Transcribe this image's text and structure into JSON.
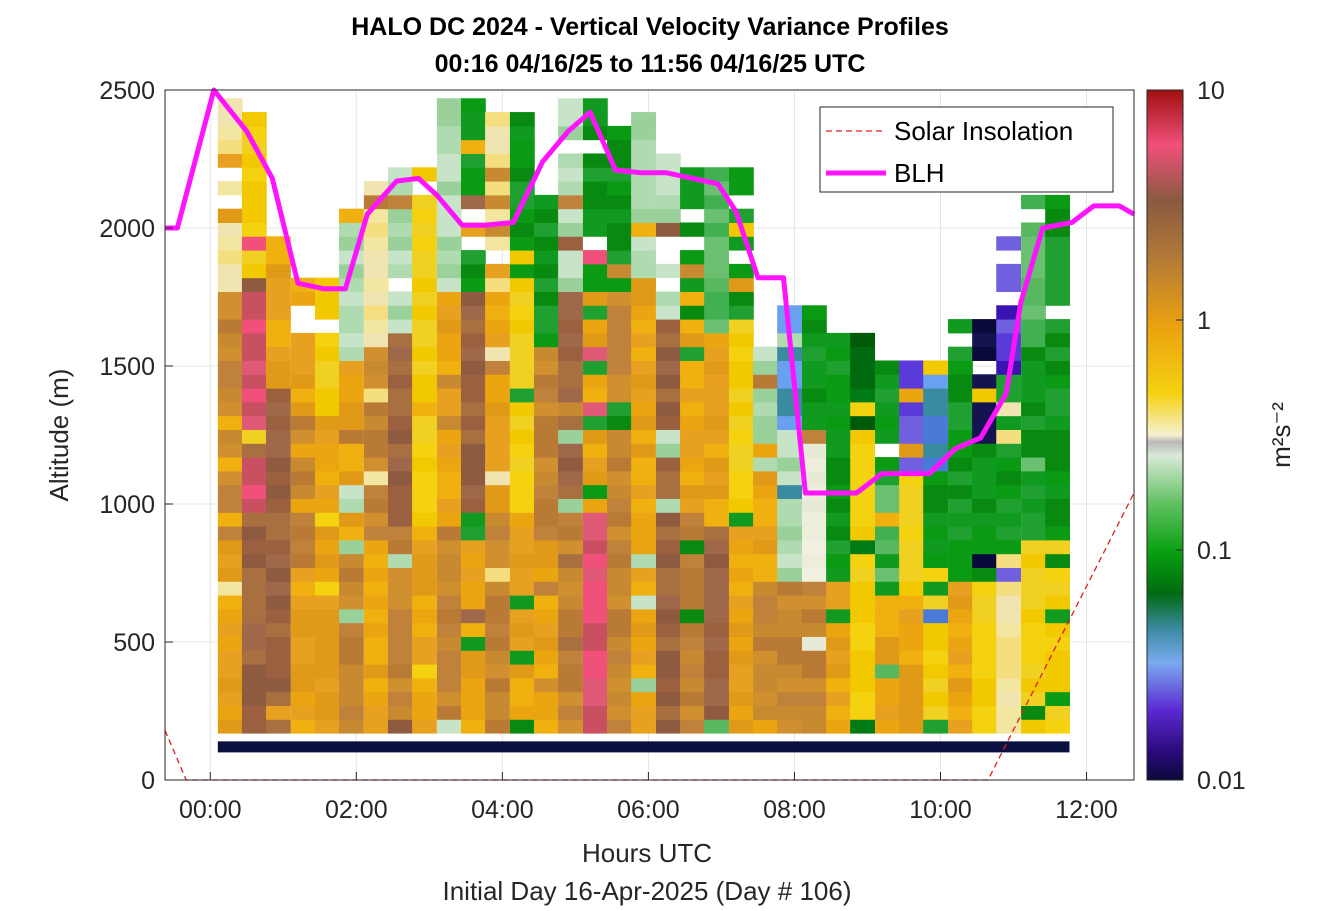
{
  "chart_data": {
    "type": "heatmap",
    "title": "HALO DC 2024 - Vertical Velocity Variance Profiles",
    "subtitle": "00:16 04/16/25 to 11:56 04/16/25  UTC",
    "xlabel": "Hours UTC",
    "xlabel2": "Initial Day 16-Apr-2025 (Day # 106)",
    "ylabel": "Altitude (m)",
    "xlim_hours": [
      -0.62,
      12.65
    ],
    "ylim": [
      0,
      2500
    ],
    "x_ticks": [
      {
        "value": 0,
        "label": "00:00"
      },
      {
        "value": 2,
        "label": "02:00"
      },
      {
        "value": 4,
        "label": "04:00"
      },
      {
        "value": 6,
        "label": "06:00"
      },
      {
        "value": 8,
        "label": "08:00"
      },
      {
        "value": 10,
        "label": "10:00"
      },
      {
        "value": 12,
        "label": "12:00"
      }
    ],
    "y_ticks": [
      {
        "value": 0,
        "label": "0"
      },
      {
        "value": 500,
        "label": "500"
      },
      {
        "value": 1000,
        "label": "1000"
      },
      {
        "value": 1500,
        "label": "1500"
      },
      {
        "value": 2000,
        "label": "2000"
      },
      {
        "value": 2500,
        "label": "2500"
      }
    ],
    "grid": true,
    "legend": {
      "placement": "top-right",
      "entries": [
        {
          "label": "Solar Insolation",
          "style": "dashed",
          "color": "#dd1f1f"
        },
        {
          "label": "BLH",
          "style": "solid",
          "color": "#ff14ff"
        }
      ]
    },
    "colorbar": {
      "label": "m²s⁻²",
      "scale": "log",
      "range": [
        0.01,
        10
      ],
      "ticks": [
        {
          "value": 10,
          "label": "10"
        },
        {
          "value": 1,
          "label": "1"
        },
        {
          "value": 0.1,
          "label": "0.1"
        },
        {
          "value": 0.01,
          "label": "0.01"
        }
      ]
    },
    "heatmap": {
      "x_start_hours": 0.27,
      "time_step_hours": 0.333,
      "alt_start_m": 170,
      "alt_step_m": 50,
      "num_times": 35,
      "num_levels": 46,
      "cmap_categories": [
        "very-low",
        "purple",
        "blue",
        "teal",
        "dark-green",
        "green",
        "light-green",
        "pale-green",
        "cream",
        "pale-yellow",
        "yellow",
        "orange",
        "tan",
        "brown",
        "pink"
      ],
      "cell_categories_note": "Variance per cell encoded by category index (0-14) of the colormap above, -1 = no data. Filled from per-profile regime description below.",
      "profiles": [
        {
          "time": 0.27,
          "top_m": 2450,
          "low": "orange",
          "mid": "tan",
          "upper": "pale-yellow"
        },
        {
          "time": 0.6,
          "top_m": 2450,
          "low": "brown",
          "mid": "pink",
          "upper": "yellow"
        },
        {
          "time": 0.93,
          "top_m": 1950,
          "low": "brown",
          "mid": "brown",
          "upper": "orange"
        },
        {
          "time": 1.27,
          "top_m": 1800,
          "low": "orange",
          "mid": "tan",
          "upper": "orange"
        },
        {
          "time": 1.6,
          "top_m": 1800,
          "low": "orange",
          "mid": "orange",
          "upper": "yellow"
        },
        {
          "time": 1.93,
          "top_m": 2050,
          "low": "tan",
          "mid": "orange",
          "upper": "pale-green"
        },
        {
          "time": 2.27,
          "top_m": 2150,
          "low": "orange",
          "mid": "tan",
          "upper": "pale-yellow"
        },
        {
          "time": 2.6,
          "top_m": 2200,
          "low": "tan",
          "mid": "brown",
          "upper": "pale-green"
        },
        {
          "time": 2.93,
          "top_m": 2200,
          "low": "orange",
          "mid": "yellow",
          "upper": "yellow"
        },
        {
          "time": 3.27,
          "top_m": 2450,
          "low": "tan",
          "mid": "orange",
          "upper": "pale-green"
        },
        {
          "time": 3.6,
          "top_m": 2450,
          "low": "orange",
          "mid": "brown",
          "upper": "green"
        },
        {
          "time": 3.93,
          "top_m": 2400,
          "low": "tan",
          "mid": "orange",
          "upper": "pale-yellow"
        },
        {
          "time": 4.27,
          "top_m": 2400,
          "low": "orange",
          "mid": "yellow",
          "upper": "green"
        },
        {
          "time": 4.6,
          "top_m": 2100,
          "low": "orange",
          "mid": "tan",
          "upper": "green"
        },
        {
          "time": 4.93,
          "top_m": 2450,
          "low": "tan",
          "mid": "brown",
          "upper": "pale-green"
        },
        {
          "time": 5.27,
          "top_m": 2450,
          "low": "pink",
          "mid": "orange",
          "upper": "green"
        },
        {
          "time": 5.6,
          "top_m": 2400,
          "low": "tan",
          "mid": "tan",
          "upper": "green"
        },
        {
          "time": 5.93,
          "top_m": 2400,
          "low": "orange",
          "mid": "orange",
          "upper": "pale-green"
        },
        {
          "time": 6.27,
          "top_m": 2250,
          "low": "brown",
          "mid": "brown",
          "upper": "pale-green"
        },
        {
          "time": 6.6,
          "top_m": 2200,
          "low": "tan",
          "mid": "orange",
          "upper": "green"
        },
        {
          "time": 6.93,
          "top_m": 2200,
          "low": "brown",
          "mid": "orange",
          "upper": "light-green"
        },
        {
          "time": 7.27,
          "top_m": 2200,
          "low": "orange",
          "mid": "yellow",
          "upper": "green"
        },
        {
          "time": 7.6,
          "top_m": 1650,
          "low": "tan",
          "mid": "orange",
          "upper": "pale-green"
        },
        {
          "time": 7.93,
          "top_m": 1700,
          "low": "tan",
          "mid": "pale-green",
          "upper": "blue"
        },
        {
          "time": 8.27,
          "top_m": 1700,
          "low": "tan",
          "mid": "cream",
          "upper": "green"
        },
        {
          "time": 8.6,
          "top_m": 1650,
          "low": "orange",
          "mid": "green",
          "upper": "green"
        },
        {
          "time": 8.93,
          "top_m": 1600,
          "low": "yellow",
          "mid": "yellow",
          "upper": "dark-green"
        },
        {
          "time": 9.27,
          "top_m": 1500,
          "low": "orange",
          "mid": "light-green",
          "upper": "green"
        },
        {
          "time": 9.6,
          "top_m": 1500,
          "low": "orange",
          "mid": "yellow",
          "upper": "purple"
        },
        {
          "time": 9.93,
          "top_m": 1500,
          "low": "yellow",
          "mid": "green",
          "upper": "blue"
        },
        {
          "time": 10.27,
          "top_m": 1650,
          "low": "orange",
          "mid": "green",
          "upper": "green"
        },
        {
          "time": 10.6,
          "top_m": 1650,
          "low": "yellow",
          "mid": "green",
          "upper": "very-low"
        },
        {
          "time": 10.93,
          "top_m": 2000,
          "low": "pale-yellow",
          "mid": "green",
          "upper": "purple"
        },
        {
          "time": 11.27,
          "top_m": 2100,
          "low": "yellow",
          "mid": "green",
          "upper": "light-green"
        },
        {
          "time": 11.6,
          "top_m": 2100,
          "low": "yellow",
          "mid": "green",
          "upper": "green"
        }
      ],
      "bottom_band_m": [
        100,
        140
      ]
    },
    "series": [
      {
        "name": "Solar Insolation",
        "color": "#dd1f1f",
        "style": "dashed",
        "x": [
          -0.62,
          -0.33,
          10.65,
          12.65
        ],
        "y": [
          180,
          0,
          0,
          1040
        ]
      },
      {
        "name": "BLH",
        "color": "#ff14ff",
        "style": "solid",
        "x": [
          -0.62,
          -0.45,
          -0.15,
          0.05,
          0.5,
          0.85,
          1.2,
          1.55,
          1.85,
          2.15,
          2.55,
          2.85,
          3.1,
          3.45,
          3.75,
          4.15,
          4.55,
          4.9,
          5.2,
          5.55,
          5.9,
          6.25,
          6.6,
          6.95,
          7.2,
          7.5,
          7.85,
          8.15,
          8.5,
          8.85,
          9.2,
          9.55,
          9.85,
          10.2,
          10.55,
          10.9,
          11.1,
          11.4,
          11.8,
          12.1,
          12.45,
          12.65
        ],
        "y": [
          2000,
          2000,
          2300,
          2500,
          2350,
          2180,
          1800,
          1780,
          1780,
          2050,
          2170,
          2180,
          2120,
          2010,
          2010,
          2020,
          2240,
          2350,
          2420,
          2210,
          2200,
          2200,
          2180,
          2160,
          2060,
          1820,
          1820,
          1040,
          1040,
          1040,
          1110,
          1110,
          1110,
          1200,
          1240,
          1400,
          1730,
          2000,
          2020,
          2080,
          2080,
          2050
        ]
      }
    ]
  },
  "colors": {
    "background": "#ffffff",
    "axis": "#262626",
    "grid": "#e5e5e5",
    "blh": "#ff14ff",
    "solar": "#dd1f1f",
    "band": "#0a1040"
  }
}
